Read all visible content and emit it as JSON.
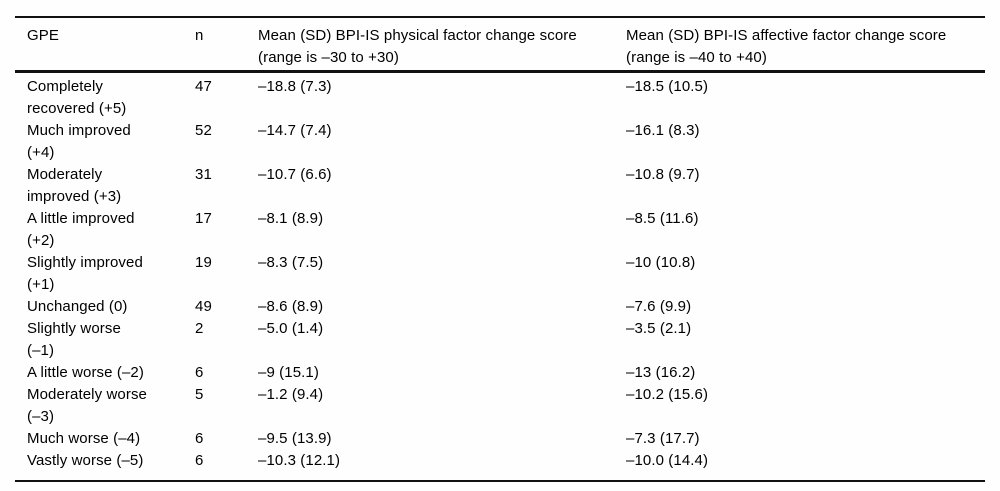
{
  "table": {
    "columns": [
      {
        "label": "GPE"
      },
      {
        "label": "n"
      },
      {
        "label": [
          "Mean (SD) BPI-IS physical factor change score",
          "(range is –30 to +30)"
        ]
      },
      {
        "label": [
          "Mean (SD) BPI-IS affective factor change score",
          "(range is –40 to +40)"
        ]
      }
    ],
    "rows": [
      {
        "gpe": [
          "Completely",
          "recovered (+5)"
        ],
        "n": "47",
        "physical": "–18.8 (7.3)",
        "affective": "–18.5 (10.5)"
      },
      {
        "gpe": [
          "Much improved",
          "(+4)"
        ],
        "n": "52",
        "physical": "–14.7 (7.4)",
        "affective": "–16.1 (8.3)"
      },
      {
        "gpe": [
          "Moderately",
          "improved (+3)"
        ],
        "n": "31",
        "physical": "–10.7 (6.6)",
        "affective": "–10.8 (9.7)"
      },
      {
        "gpe": [
          "A little improved",
          "(+2)"
        ],
        "n": "17",
        "physical": "–8.1 (8.9)",
        "affective": "–8.5 (11.6)"
      },
      {
        "gpe": [
          "Slightly improved",
          "(+1)"
        ],
        "n": "19",
        "physical": "–8.3 (7.5)",
        "affective": "–10 (10.8)"
      },
      {
        "gpe": [
          "Unchanged (0)"
        ],
        "n": "49",
        "physical": "–8.6 (8.9)",
        "affective": "–7.6 (9.9)"
      },
      {
        "gpe": [
          "Slightly worse",
          "(–1)"
        ],
        "n": "2",
        "physical": "–5.0 (1.4)",
        "affective": "–3.5 (2.1)"
      },
      {
        "gpe": [
          "A little worse (–2)"
        ],
        "n": "6",
        "physical": "–9 (15.1)",
        "affective": "–13 (16.2)"
      },
      {
        "gpe": [
          "Moderately worse",
          "(–3)"
        ],
        "n": "5",
        "physical": "–1.2 (9.4)",
        "affective": "–10.2 (15.6)"
      },
      {
        "gpe": [
          "Much worse (–4)"
        ],
        "n": "6",
        "physical": "–9.5 (13.9)",
        "affective": "–7.3 (17.7)"
      },
      {
        "gpe": [
          "Vastly worse (–5)"
        ],
        "n": "6",
        "physical": "–10.3 (12.1)",
        "affective": "–10.0 (14.4)"
      }
    ]
  }
}
